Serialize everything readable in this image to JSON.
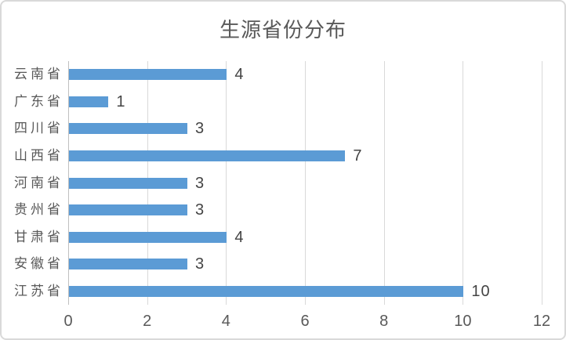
{
  "chart_data": {
    "type": "bar",
    "orientation": "horizontal",
    "title": "生源省份分布",
    "categories": [
      "云南省",
      "广东省",
      "四川省",
      "山西省",
      "河南省",
      "贵州省",
      "甘肃省",
      "安徽省",
      "江苏省"
    ],
    "values": [
      4,
      1,
      3,
      7,
      3,
      3,
      4,
      3,
      10
    ],
    "data_labels": [
      "4",
      "1",
      "3",
      "7",
      "3",
      "3",
      "4",
      "3",
      "10"
    ],
    "x_ticks": [
      "0",
      "2",
      "4",
      "6",
      "8",
      "10",
      "12"
    ],
    "xlim": [
      0,
      12
    ],
    "grid": true,
    "legend": "none",
    "colors": {
      "bar": "#5b9bd5",
      "gridline": "#d9d9d9",
      "axis_line": "#bfbfbf",
      "title_text": "#595959",
      "category_text": "#595959",
      "tick_text": "#595959",
      "value_text": "#444444",
      "card_border": "#d9d9d9",
      "background": "#ffffff"
    }
  }
}
